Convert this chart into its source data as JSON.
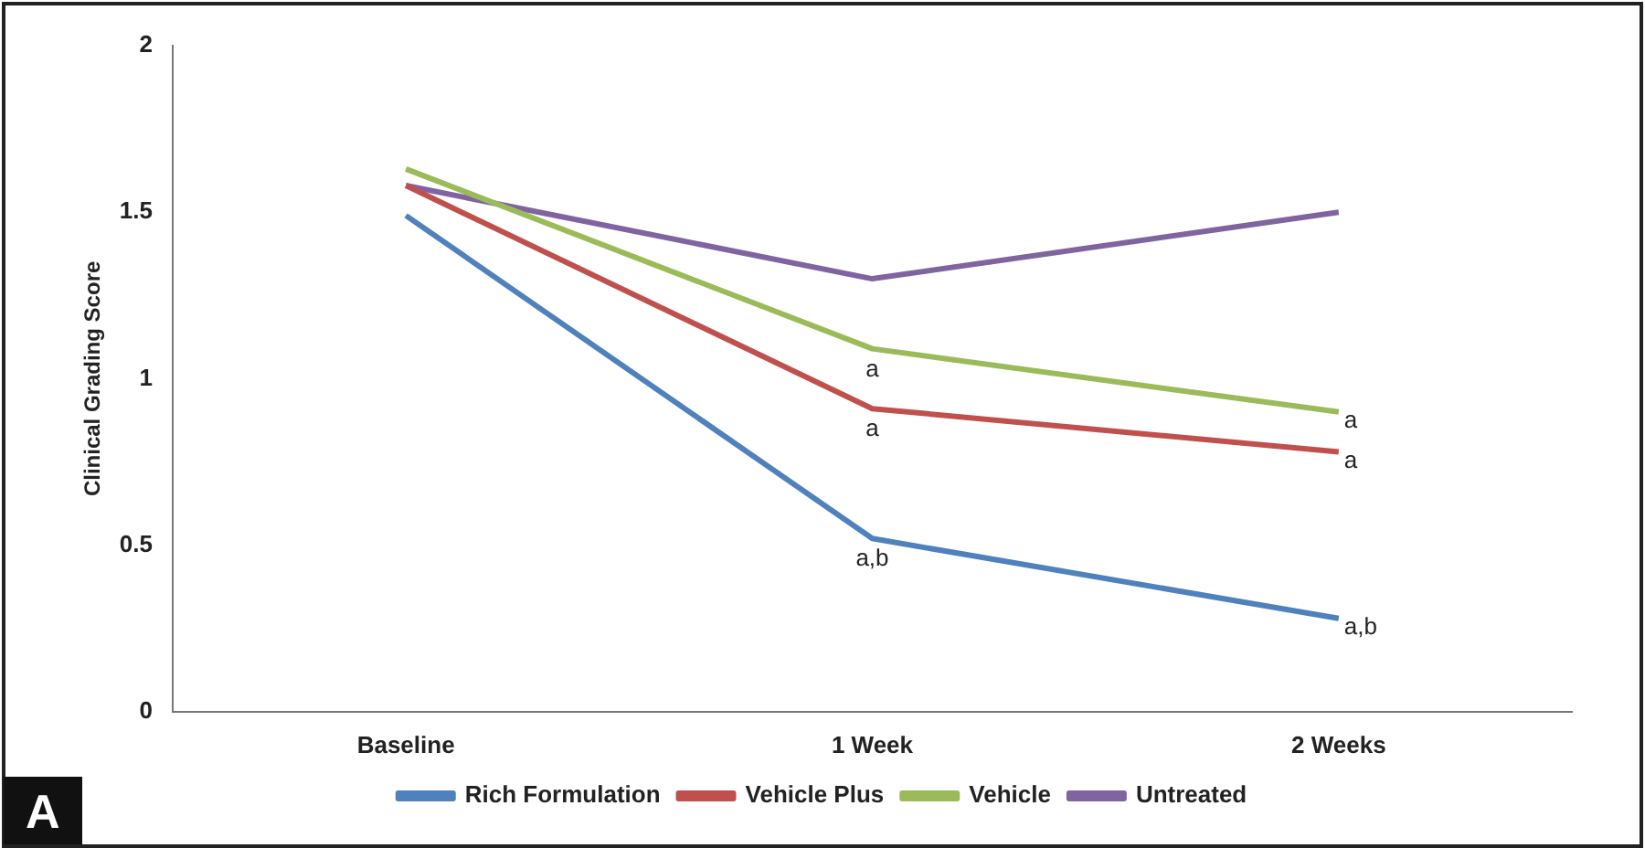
{
  "chart_data": {
    "type": "line",
    "ylabel": "Clinical Grading Score",
    "categories": [
      "Baseline",
      "1 Week",
      "2 Weeks"
    ],
    "series": [
      {
        "name": "Rich Formulation",
        "color": "#4f81bd",
        "values": [
          1.49,
          0.52,
          0.28
        ]
      },
      {
        "name": "Vehicle Plus",
        "color": "#c0504d",
        "values": [
          1.58,
          0.91,
          0.78
        ]
      },
      {
        "name": "Vehicle",
        "color": "#9bbb59",
        "values": [
          1.63,
          1.09,
          0.9
        ]
      },
      {
        "name": "Untreated",
        "color": "#8064a2",
        "values": [
          1.58,
          1.3,
          1.5
        ]
      }
    ],
    "ylim": [
      0,
      2
    ],
    "yticks": [
      0,
      0.5,
      1,
      1.5,
      2
    ],
    "grid": false,
    "legend": "bottom",
    "marker": "none",
    "line_style": "solid",
    "annotations": [
      {
        "text": "a",
        "x": "1 Week",
        "y": 1.09
      },
      {
        "text": "a",
        "x": "1 Week",
        "y": 0.91
      },
      {
        "text": "a,b",
        "x": "1 Week",
        "y": 0.52
      },
      {
        "text": "a",
        "x": "2 Weeks",
        "y": 0.9
      },
      {
        "text": "a",
        "x": "2 Weeks",
        "y": 0.78
      },
      {
        "text": "a,b",
        "x": "2 Weeks",
        "y": 0.28
      },
      "A"
    ]
  }
}
